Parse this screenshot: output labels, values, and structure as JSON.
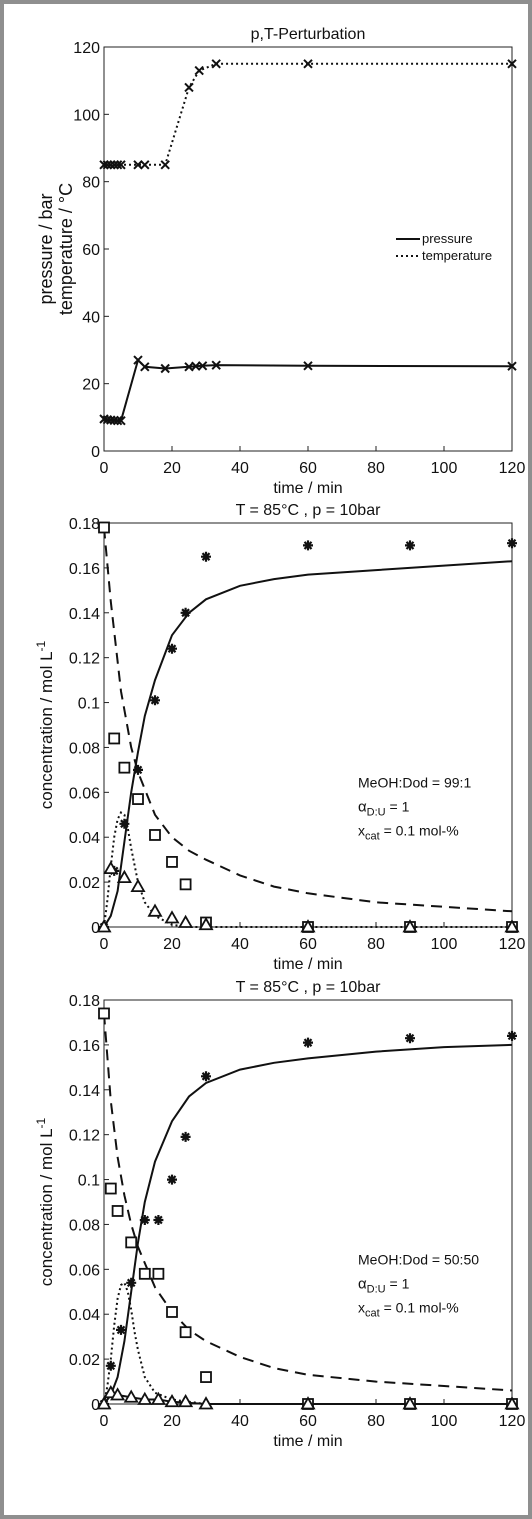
{
  "chart_data": [
    {
      "type": "line",
      "title": "p,T-Perturbation",
      "xlabel": "time / min",
      "ylabel_lines": [
        "pressure / bar",
        "temperature / °C"
      ],
      "xlim": [
        0,
        120
      ],
      "ylim": [
        0,
        120
      ],
      "xticks": [
        0,
        20,
        40,
        60,
        80,
        100,
        120
      ],
      "yticks": [
        0,
        20,
        40,
        60,
        80,
        100,
        120
      ],
      "grid": false,
      "legend": {
        "placement": "right",
        "entries": [
          {
            "label": "pressure",
            "style": "solid"
          },
          {
            "label": "temperature",
            "style": "dotted"
          }
        ]
      },
      "series": [
        {
          "name": "pressure",
          "style": "solid",
          "x": [
            0,
            1,
            2,
            3,
            4,
            5,
            10,
            12,
            18,
            25,
            27,
            29,
            33,
            60,
            120
          ],
          "y": [
            9.5,
            9.3,
            9.2,
            9.1,
            9.0,
            9.0,
            27.0,
            25.0,
            24.5,
            25.0,
            25.2,
            25.3,
            25.5,
            25.3,
            25.2
          ],
          "markers": "x"
        },
        {
          "name": "temperature",
          "style": "dotted",
          "x": [
            0,
            1,
            2,
            3,
            4,
            5,
            10,
            12,
            18,
            25,
            28,
            33,
            60,
            120
          ],
          "y": [
            85,
            85,
            85,
            85,
            85,
            85,
            85,
            85,
            85,
            108,
            113,
            115,
            115,
            115
          ],
          "markers": "x"
        }
      ]
    },
    {
      "type": "scatter",
      "title": "T = 85°C , p = 10bar",
      "xlabel": "time / min",
      "ylabel": "concentration / mol L",
      "ylabel_sup": "-1",
      "xlim": [
        0,
        120
      ],
      "ylim": [
        0,
        0.18
      ],
      "xticks": [
        0,
        20,
        40,
        60,
        80,
        100,
        120
      ],
      "yticks": [
        0,
        0.02,
        0.04,
        0.06,
        0.08,
        0.1,
        0.12,
        0.14,
        0.16,
        0.18
      ],
      "ytick_labels": [
        "0",
        "0.02",
        "0.04",
        "0.06",
        "0.08",
        "0.1",
        "0.12",
        "0.14",
        "0.16",
        "0.18"
      ],
      "grid": false,
      "annotation": {
        "line1": "MeOH:Dod = 99:1",
        "alpha_sym": "α",
        "alpha_sub": "D:U",
        "alpha_val": "= 1",
        "x_sym": "x",
        "x_sub": "cat",
        "x_val": "= 0.1 mol-%"
      },
      "markers": {
        "square": {
          "x": [
            0,
            3,
            6,
            10,
            15,
            20,
            24,
            30,
            60,
            90,
            120
          ],
          "y": [
            0.178,
            0.084,
            0.071,
            0.057,
            0.041,
            0.029,
            0.019,
            0.002,
            0.0,
            0.0,
            0.0
          ]
        },
        "star": {
          "x": [
            0,
            3,
            6,
            10,
            15,
            20,
            24,
            30,
            60,
            90,
            120
          ],
          "y": [
            0.0,
            0.025,
            0.046,
            0.07,
            0.101,
            0.124,
            0.14,
            0.165,
            0.17,
            0.17,
            0.171
          ]
        },
        "triangle": {
          "x": [
            0,
            2,
            6,
            10,
            15,
            20,
            24,
            30,
            60,
            90,
            120
          ],
          "y": [
            0.0,
            0.026,
            0.022,
            0.018,
            0.007,
            0.004,
            0.002,
            0.001,
            0.0,
            0.0,
            0.0
          ]
        }
      },
      "curves": [
        {
          "style": "dashed",
          "x": [
            0,
            2,
            5,
            8,
            10,
            15,
            20,
            25,
            30,
            40,
            50,
            60,
            80,
            100,
            120
          ],
          "y": [
            0.178,
            0.145,
            0.105,
            0.08,
            0.069,
            0.05,
            0.04,
            0.034,
            0.03,
            0.023,
            0.018,
            0.015,
            0.011,
            0.009,
            0.007
          ]
        },
        {
          "style": "solid",
          "x": [
            0,
            2,
            4,
            6,
            8,
            10,
            12,
            15,
            20,
            25,
            30,
            40,
            50,
            60,
            80,
            100,
            120
          ],
          "y": [
            0.0,
            0.005,
            0.016,
            0.038,
            0.06,
            0.078,
            0.094,
            0.11,
            0.13,
            0.14,
            0.146,
            0.152,
            0.155,
            0.157,
            0.159,
            0.161,
            0.163
          ]
        },
        {
          "style": "dotted",
          "x": [
            0,
            1,
            2,
            3,
            4,
            5,
            6,
            7,
            8,
            10,
            12,
            15,
            20,
            25,
            30,
            60,
            120
          ],
          "y": [
            0.0,
            0.012,
            0.027,
            0.04,
            0.048,
            0.051,
            0.05,
            0.044,
            0.035,
            0.02,
            0.011,
            0.005,
            0.001,
            0.0,
            0.0,
            0.0,
            0.0
          ]
        }
      ]
    },
    {
      "type": "scatter",
      "title": "T = 85°C , p = 10bar",
      "xlabel": "time / min",
      "ylabel": "concentration / mol L",
      "ylabel_sup": "-1",
      "xlim": [
        0,
        120
      ],
      "ylim": [
        0,
        0.18
      ],
      "xticks": [
        0,
        20,
        40,
        60,
        80,
        100,
        120
      ],
      "yticks": [
        0,
        0.02,
        0.04,
        0.06,
        0.08,
        0.1,
        0.12,
        0.14,
        0.16,
        0.18
      ],
      "ytick_labels": [
        "0",
        "0.02",
        "0.04",
        "0.06",
        "0.08",
        "0.1",
        "0.12",
        "0.14",
        "0.16",
        "0.18"
      ],
      "grid": false,
      "annotation": {
        "line1": "MeOH:Dod = 50:50",
        "alpha_sym": "α",
        "alpha_sub": "D:U",
        "alpha_val": "= 1",
        "x_sym": "x",
        "x_sub": "cat",
        "x_val": "= 0.1 mol-%"
      },
      "markers": {
        "square": {
          "x": [
            0,
            2,
            4,
            8,
            12,
            16,
            20,
            24,
            30,
            60,
            90,
            120
          ],
          "y": [
            0.174,
            0.096,
            0.086,
            0.072,
            0.058,
            0.058,
            0.041,
            0.032,
            0.012,
            0.0,
            0.0,
            0.0
          ]
        },
        "star": {
          "x": [
            0,
            2,
            5,
            8,
            12,
            16,
            20,
            24,
            30,
            60,
            90,
            120
          ],
          "y": [
            0.0,
            0.017,
            0.033,
            0.054,
            0.082,
            0.082,
            0.1,
            0.119,
            0.146,
            0.161,
            0.163,
            0.164
          ]
        },
        "triangle": {
          "x": [
            0,
            2,
            4,
            8,
            12,
            16,
            20,
            24,
            30,
            60,
            90,
            120
          ],
          "y": [
            0.0,
            0.005,
            0.004,
            0.003,
            0.002,
            0.002,
            0.001,
            0.001,
            0.0,
            0.0,
            0.0,
            0.0
          ]
        }
      },
      "curves": [
        {
          "style": "dashed",
          "x": [
            0,
            2,
            4,
            6,
            8,
            10,
            15,
            20,
            25,
            30,
            40,
            50,
            60,
            80,
            100,
            120
          ],
          "y": [
            0.174,
            0.135,
            0.11,
            0.093,
            0.08,
            0.07,
            0.052,
            0.041,
            0.033,
            0.028,
            0.021,
            0.016,
            0.013,
            0.01,
            0.008,
            0.006
          ]
        },
        {
          "style": "solid",
          "x": [
            0,
            2,
            4,
            6,
            8,
            10,
            12,
            15,
            20,
            25,
            30,
            40,
            50,
            60,
            80,
            100,
            120
          ],
          "y": [
            0.0,
            0.004,
            0.012,
            0.028,
            0.05,
            0.072,
            0.09,
            0.108,
            0.126,
            0.137,
            0.143,
            0.149,
            0.152,
            0.154,
            0.157,
            0.159,
            0.16
          ]
        },
        {
          "style": "dotted",
          "x": [
            0,
            1,
            2,
            3,
            4,
            5,
            6,
            7,
            8,
            9,
            10,
            12,
            15,
            20,
            25,
            30,
            60,
            120
          ],
          "y": [
            0.0,
            0.008,
            0.02,
            0.035,
            0.047,
            0.053,
            0.054,
            0.05,
            0.042,
            0.032,
            0.024,
            0.012,
            0.005,
            0.002,
            0.001,
            0.0,
            0.0,
            0.0
          ]
        },
        {
          "style": "solid",
          "x": [
            0,
            2,
            4,
            8,
            12,
            16,
            20,
            30,
            60,
            120
          ],
          "y": [
            0.0,
            0.004,
            0.004,
            0.003,
            0.002,
            0.002,
            0.001,
            0.0,
            0.0,
            0.0
          ]
        }
      ]
    }
  ]
}
